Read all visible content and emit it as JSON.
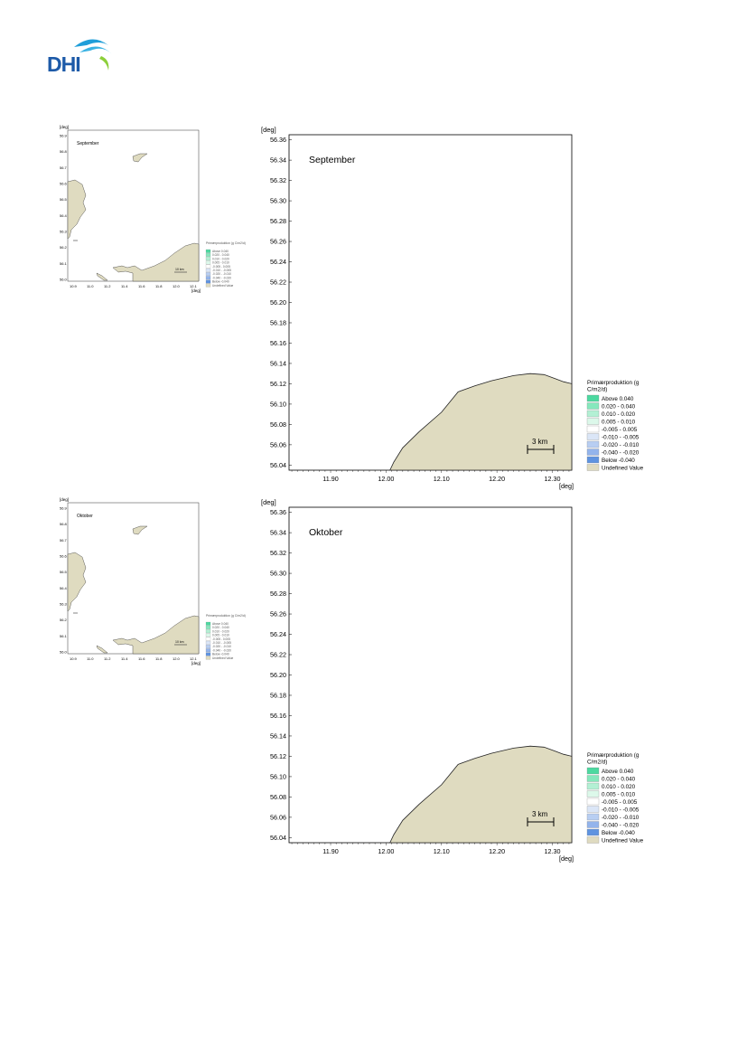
{
  "logo": {
    "text": "DHI"
  },
  "common": {
    "axis_unit": "[deg]",
    "scale_bar": "3 km",
    "legend_title_1": "Primærproduktion (g",
    "legend_title_2": "C/m2/d)",
    "legend": [
      {
        "label": "Above   0.040",
        "color": "#4cd9a0"
      },
      {
        "label": " 0.020 -  0.040",
        "color": "#86e8bd"
      },
      {
        "label": " 0.010 -  0.020",
        "color": "#b3f0d4"
      },
      {
        "label": " 0.005 -  0.010",
        "color": "#dcf8ea"
      },
      {
        "label": "-0.005 -  0.005",
        "color": "#ffffff"
      },
      {
        "label": "-0.010 - -0.005",
        "color": "#dbe6f7"
      },
      {
        "label": "-0.020 - -0.010",
        "color": "#b8cef2"
      },
      {
        "label": "-0.040 - -0.020",
        "color": "#93b4ec"
      },
      {
        "label": "Below   -0.040",
        "color": "#5f93e0"
      },
      {
        "label": "Undefined Value",
        "color": "#dfdbc0"
      }
    ],
    "land_color": "#dfdbc0",
    "y_ticks": [
      "56.36",
      "56.34",
      "56.32",
      "56.30",
      "56.28",
      "56.26",
      "56.24",
      "56.22",
      "56.20",
      "56.18",
      "56.16",
      "56.14",
      "56.12",
      "56.10",
      "56.08",
      "56.06",
      "56.04"
    ],
    "x_ticks": [
      "11.90",
      "12.00",
      "12.10",
      "12.20",
      "12.30"
    ],
    "overview_y_ticks": [
      "56.9",
      "56.8",
      "56.7",
      "56.6",
      "56.5",
      "56.4",
      "56.3",
      "56.2",
      "56.1",
      "56.0"
    ],
    "overview_x_ticks": [
      "10.9",
      "11.0",
      "11.2",
      "11.4",
      "11.6",
      "11.8",
      "12.0",
      "12.1"
    ],
    "overview_scale_bar": "10 km"
  },
  "maps": [
    {
      "id": "september",
      "month": "September"
    },
    {
      "id": "oktober",
      "month": "Oktober"
    }
  ]
}
